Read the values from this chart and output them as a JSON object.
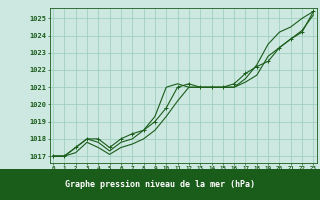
{
  "title": "Graphe pression niveau de la mer (hPa)",
  "x_labels": [
    "0",
    "1",
    "2",
    "3",
    "4",
    "5",
    "6",
    "7",
    "8",
    "9",
    "10",
    "11",
    "12",
    "13",
    "14",
    "15",
    "16",
    "17",
    "18",
    "19",
    "20",
    "21",
    "22",
    "23"
  ],
  "x_values": [
    0,
    1,
    2,
    3,
    4,
    5,
    6,
    7,
    8,
    9,
    10,
    11,
    12,
    13,
    14,
    15,
    16,
    17,
    18,
    19,
    20,
    21,
    22,
    23
  ],
  "ylim": [
    1016.6,
    1025.6
  ],
  "yticks": [
    1017,
    1018,
    1019,
    1020,
    1021,
    1022,
    1023,
    1024,
    1025
  ],
  "line1": [
    1017.0,
    1017.0,
    1017.5,
    1018.0,
    1017.8,
    1017.3,
    1017.8,
    1018.0,
    1018.5,
    1019.3,
    1021.0,
    1021.2,
    1021.0,
    1021.0,
    1021.0,
    1021.0,
    1021.0,
    1021.5,
    1022.3,
    1023.5,
    1024.2,
    1024.5,
    1025.0,
    1025.4
  ],
  "line2": [
    1017.0,
    1017.0,
    1017.5,
    1018.0,
    1018.0,
    1017.5,
    1018.0,
    1018.3,
    1018.5,
    1019.0,
    1019.8,
    1021.0,
    1021.2,
    1021.0,
    1021.0,
    1021.0,
    1021.2,
    1021.8,
    1022.2,
    1022.5,
    1023.3,
    1023.8,
    1024.2,
    1025.4
  ],
  "line3": [
    1017.0,
    1017.0,
    1017.2,
    1017.8,
    1017.5,
    1017.1,
    1017.5,
    1017.7,
    1018.0,
    1018.5,
    1019.3,
    1020.2,
    1021.0,
    1021.0,
    1021.0,
    1021.0,
    1021.0,
    1021.3,
    1021.7,
    1022.8,
    1023.3,
    1023.8,
    1024.3,
    1025.2
  ],
  "line_color": "#1a5c1a",
  "bg_color": "#cce8e0",
  "grid_color": "#99ccbb",
  "title_bg": "#1a5c1a",
  "title_fg": "#ffffff"
}
